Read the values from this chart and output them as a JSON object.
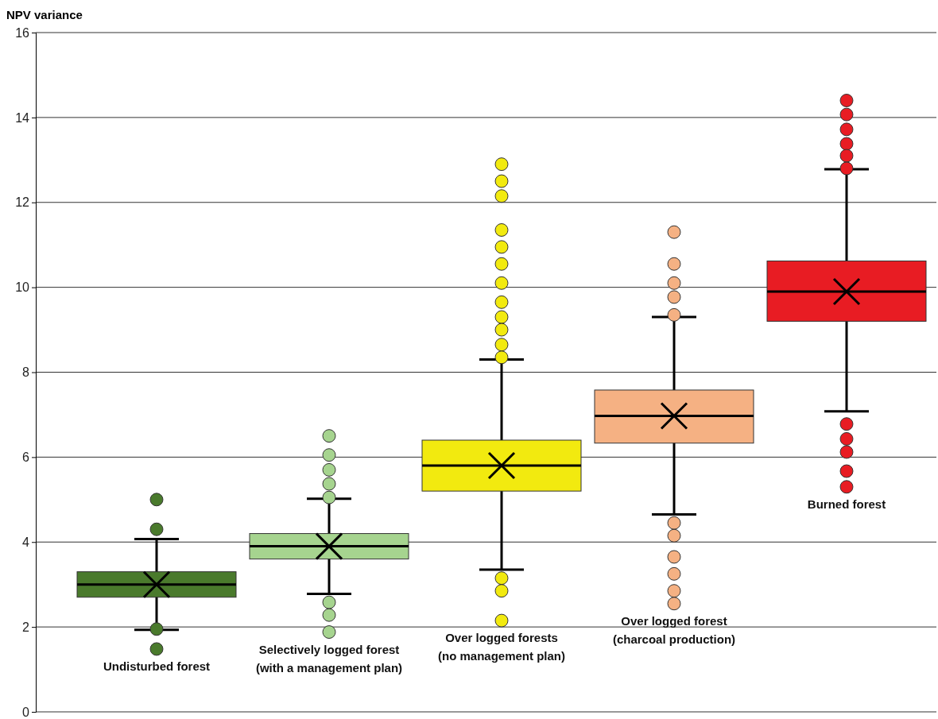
{
  "chart_data": {
    "type": "box",
    "ylabel": "NPV variance",
    "categories": [
      "Undisturbed forest",
      "Selectively logged forest (with a management plan)",
      "Over logged forests (no management plan)",
      "Over logged forest (charcoal production)",
      "Burned forest"
    ],
    "colors": [
      "#4a7a2c",
      "#a6d48f",
      "#f2ea0f",
      "#f5b183",
      "#e81c23"
    ],
    "boxes": [
      {
        "low": 1.93,
        "q1": 2.7,
        "median": 3.0,
        "q3": 3.3,
        "high": 4.07,
        "mean": 3.0,
        "outliers": [
          5.0,
          4.3,
          1.95,
          1.48
        ]
      },
      {
        "low": 2.78,
        "q1": 3.6,
        "median": 3.9,
        "q3": 4.2,
        "high": 5.02,
        "mean": 3.9,
        "outliers": [
          6.5,
          6.05,
          5.7,
          5.37,
          5.05,
          2.58,
          2.28,
          1.88
        ]
      },
      {
        "low": 3.35,
        "q1": 5.2,
        "median": 5.8,
        "q3": 6.4,
        "high": 8.3,
        "mean": 5.8,
        "outliers": [
          12.9,
          12.5,
          12.15,
          11.35,
          10.95,
          10.55,
          10.1,
          9.65,
          9.3,
          9.0,
          8.65,
          8.35,
          3.15,
          2.85,
          2.15
        ]
      },
      {
        "low": 4.65,
        "q1": 6.33,
        "median": 6.97,
        "q3": 7.58,
        "high": 9.3,
        "mean": 6.97,
        "outliers": [
          11.3,
          10.55,
          10.1,
          9.77,
          9.35,
          4.45,
          4.15,
          3.65,
          3.25,
          2.85,
          2.55
        ]
      },
      {
        "low": 7.08,
        "q1": 9.2,
        "median": 9.9,
        "q3": 10.62,
        "high": 12.78,
        "mean": 9.9,
        "outliers": [
          14.4,
          14.07,
          13.72,
          13.38,
          13.1,
          12.8,
          6.78,
          6.43,
          6.12,
          5.67,
          5.3
        ]
      }
    ],
    "ylim": [
      0,
      16
    ],
    "yticks": [
      0,
      2,
      4,
      6,
      8,
      10,
      12,
      14,
      16
    ],
    "grid": "y",
    "marker": "circle"
  }
}
